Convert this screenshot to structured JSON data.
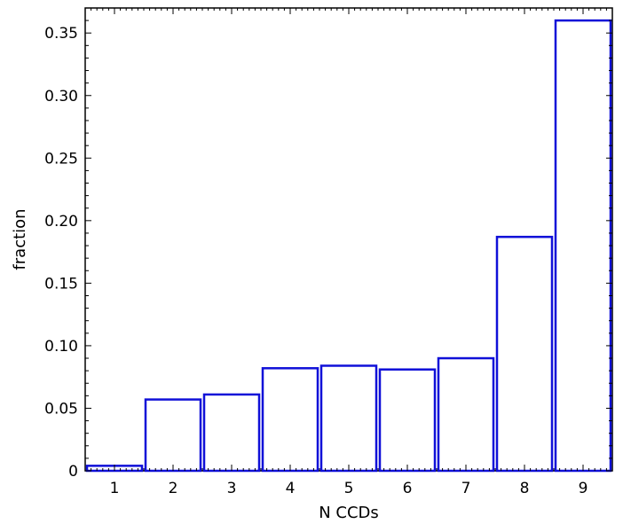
{
  "chart_data": {
    "type": "bar",
    "categories": [
      "1",
      "2",
      "3",
      "4",
      "5",
      "6",
      "7",
      "8",
      "9"
    ],
    "values": [
      0.004,
      0.057,
      0.061,
      0.082,
      0.084,
      0.081,
      0.09,
      0.187,
      0.36
    ],
    "xlabel": "N CCDs",
    "ylabel": "fraction",
    "ylim": [
      0,
      0.37
    ],
    "yticks": [
      0,
      0.05,
      0.1,
      0.15,
      0.2,
      0.25,
      0.3,
      0.35
    ],
    "ytick_labels": [
      "0",
      "0.05",
      "0.10",
      "0.15",
      "0.20",
      "0.25",
      "0.30",
      "0.35"
    ],
    "grid": false,
    "bar_style": "outline",
    "bar_color": "#1010d8"
  }
}
